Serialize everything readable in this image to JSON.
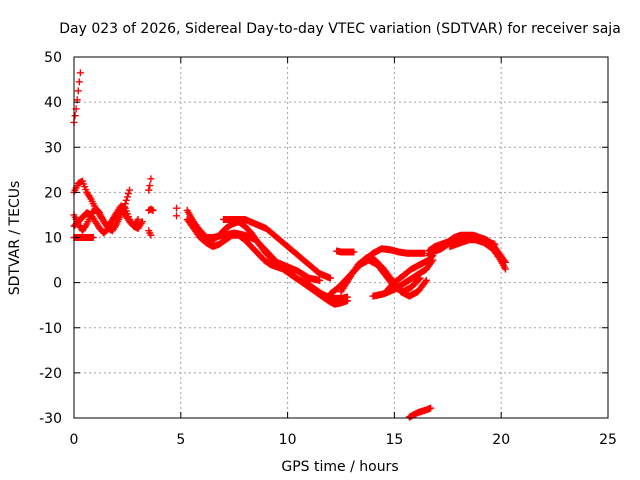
{
  "chart_data": {
    "type": "scatter",
    "title": "Day 023 of 2026, Sidereal Day-to-day VTEC variation (SDTVAR) for receiver saja",
    "xlabel": "GPS time / hours",
    "ylabel": "SDTVAR / TECUs",
    "xlim": [
      0,
      25
    ],
    "ylim": [
      -30,
      50
    ],
    "xticks": [
      0,
      5,
      10,
      15,
      20,
      25
    ],
    "yticks": [
      -30,
      -20,
      -10,
      0,
      10,
      20,
      30,
      40,
      50
    ],
    "xtick_labels": [
      "0",
      "5",
      "10",
      "15",
      "20",
      "25"
    ],
    "ytick_labels": [
      "-30",
      "-20",
      "-10",
      "0",
      "10",
      "20",
      "30",
      "40",
      "50"
    ],
    "grid": true,
    "marker": "plus",
    "color": "#ff0000",
    "series": [
      {
        "name": "s1",
        "x": [
          0.0,
          0.05,
          0.1,
          0.15,
          0.2,
          0.25,
          0.3
        ],
        "y": [
          35.5,
          37,
          38.5,
          40.5,
          42.5,
          44.5,
          46.5
        ]
      },
      {
        "name": "s2",
        "x": [
          0.0,
          0.2,
          0.4,
          0.6,
          0.8,
          1.0,
          1.2,
          1.4,
          1.6,
          1.8,
          2.0,
          2.2,
          2.4,
          2.6
        ],
        "y": [
          20,
          22,
          22.5,
          20,
          18.5,
          16.5,
          15,
          13.5,
          12,
          11.5,
          13,
          15,
          17.5,
          20.5
        ]
      },
      {
        "name": "s3",
        "x": [
          0.0,
          0.2,
          0.4,
          0.6,
          0.8,
          1.0,
          1.2,
          1.4,
          1.6,
          1.8,
          2.0,
          2.2,
          2.4,
          2.6,
          2.8,
          3.0
        ],
        "y": [
          15,
          13,
          11.5,
          13,
          15,
          16.5,
          15.5,
          13.5,
          12.5,
          14,
          15.5,
          17,
          16.5,
          14,
          12.5,
          14
        ]
      },
      {
        "name": "s4",
        "x": [
          0.0,
          0.2,
          0.4,
          0.6,
          0.8,
          1.0,
          1.2,
          1.4,
          1.6,
          1.8,
          2.0,
          2.2,
          2.4,
          2.6,
          2.8,
          3.0,
          3.2
        ],
        "y": [
          12.5,
          13.5,
          14.5,
          15.5,
          15,
          13.5,
          12,
          11,
          12,
          13.5,
          15,
          16,
          15,
          13.5,
          12.5,
          12,
          13.5
        ]
      },
      {
        "name": "s5",
        "x": [
          0.0,
          0.3,
          0.6,
          0.9
        ],
        "y": [
          10,
          10,
          10,
          10
        ]
      },
      {
        "name": "s6",
        "x": [
          3.5,
          3.55,
          3.6
        ],
        "y": [
          20.5,
          21.5,
          23
        ]
      },
      {
        "name": "s7",
        "x": [
          3.5,
          3.6,
          3.7
        ],
        "y": [
          16,
          16.3,
          16
        ]
      },
      {
        "name": "s8",
        "x": [
          3.5,
          3.55,
          3.6
        ],
        "y": [
          11.5,
          11,
          10.5
        ]
      },
      {
        "name": "s9",
        "x": [
          4.8,
          4.8
        ],
        "y": [
          16.5,
          14.8
        ]
      },
      {
        "name": "s10",
        "x": [
          5.3,
          5.6,
          5.9,
          6.2,
          6.5,
          6.8,
          7.1,
          7.4,
          7.7,
          8.0,
          8.3,
          8.6,
          8.9,
          9.2,
          9.5,
          9.8,
          10.1,
          10.4,
          10.7,
          11.0,
          11.3,
          11.6,
          11.9,
          12.2,
          12.5,
          12.8
        ],
        "y": [
          16,
          13.5,
          11.5,
          10,
          9.5,
          10.5,
          12,
          13,
          13.5,
          12.5,
          11,
          9,
          7,
          5.5,
          4,
          3,
          2,
          1,
          0,
          -1,
          -2,
          -3,
          -4,
          -4.8,
          -4.5,
          -4
        ]
      },
      {
        "name": "s11",
        "x": [
          5.3,
          5.6,
          5.9,
          6.2,
          6.5,
          6.8,
          7.1,
          7.4,
          7.7,
          8.0,
          8.3,
          8.6,
          8.9,
          9.2,
          9.5,
          9.8,
          10.1,
          10.4,
          10.7,
          11.0,
          11.3,
          11.6,
          11.9,
          12.2,
          12.5,
          12.8
        ],
        "y": [
          14,
          12,
          10,
          8.8,
          8,
          8.5,
          9.5,
          10.5,
          10.5,
          9.5,
          8,
          6.5,
          5,
          4,
          3.5,
          3,
          2,
          1,
          0.3,
          -0.5,
          -1.5,
          -2.5,
          -3.2,
          -3.5,
          -3.5,
          -3.2
        ]
      },
      {
        "name": "s12",
        "x": [
          7.0,
          7.5,
          8.0,
          8.5,
          9.0,
          9.5,
          10.0,
          10.5,
          11.0,
          11.5,
          12.0
        ],
        "y": [
          14,
          14,
          14,
          13,
          12,
          10,
          8,
          6,
          4,
          2,
          1
        ]
      },
      {
        "name": "s13",
        "x": [
          6.0,
          6.5,
          7.0,
          7.5,
          8.0,
          8.5,
          9.0,
          9.5,
          10.0,
          10.5,
          11.0,
          11.5
        ],
        "y": [
          10,
          10,
          10.5,
          11,
          10.5,
          9.5,
          7,
          4.5,
          3.5,
          2.5,
          1,
          0.5
        ]
      },
      {
        "name": "s14",
        "x": [
          12.3,
          12.5,
          12.7,
          12.9,
          13.1
        ],
        "y": [
          7,
          6.8,
          6.8,
          6.8,
          6.8
        ]
      },
      {
        "name": "s15",
        "x": [
          12.0,
          12.4,
          12.8,
          13.2,
          13.6,
          14.0,
          14.4,
          14.8,
          15.2,
          15.6,
          16.0,
          16.4
        ],
        "y": [
          -2.5,
          -1,
          1,
          3,
          5,
          6.5,
          7.5,
          7.3,
          6.8,
          6.5,
          6.5,
          6.5
        ]
      },
      {
        "name": "s16",
        "x": [
          12.5,
          12.9,
          13.3,
          13.7,
          14.1,
          14.5,
          14.9,
          15.3,
          15.7,
          16.1,
          16.5
        ],
        "y": [
          -2,
          1,
          4,
          5.5,
          5,
          3,
          0.5,
          -2,
          -3,
          -2,
          0.5
        ]
      },
      {
        "name": "s17",
        "x": [
          13.0,
          13.4,
          13.8,
          14.2,
          14.6,
          15.0,
          15.4,
          15.8,
          16.2
        ],
        "y": [
          2,
          4,
          5,
          4,
          1.5,
          -1,
          -2,
          -1,
          1
        ]
      },
      {
        "name": "s18",
        "x": [
          14.0,
          14.5,
          15.0,
          15.5,
          16.0,
          16.5,
          16.8
        ],
        "y": [
          -3,
          -2.5,
          -1.5,
          0,
          1.5,
          3,
          5
        ]
      },
      {
        "name": "s19",
        "x": [
          14.6,
          15.0,
          15.4,
          15.8,
          16.2,
          16.6,
          16.8
        ],
        "y": [
          -2,
          0,
          1.5,
          3,
          4,
          5,
          6
        ]
      },
      {
        "name": "s20",
        "x": [
          15.7,
          15.9,
          16.1,
          16.3,
          16.5,
          16.7
        ],
        "y": [
          -29.8,
          -29.3,
          -28.8,
          -28.5,
          -28.2,
          -27.8
        ]
      },
      {
        "name": "s21",
        "x": [
          16.6,
          16.9,
          17.2,
          17.5,
          17.8,
          18.1,
          18.4,
          18.7,
          19.0,
          19.3,
          19.6,
          19.9,
          20.2
        ],
        "y": [
          6,
          7,
          7.5,
          8.5,
          9.5,
          10,
          10,
          10,
          9.5,
          8.5,
          7.5,
          5.5,
          3
        ]
      },
      {
        "name": "s22",
        "x": [
          16.6,
          16.9,
          17.2,
          17.5,
          17.8,
          18.1,
          18.4,
          18.7,
          19.0,
          19.3,
          19.6,
          19.9,
          20.2
        ],
        "y": [
          7,
          8,
          8.5,
          9,
          10,
          10.5,
          10.5,
          10.5,
          10,
          9.5,
          8.5,
          6.5,
          4.5
        ]
      },
      {
        "name": "s23",
        "x": [
          17.6,
          17.9,
          18.2,
          18.5,
          18.8,
          19.1,
          19.4,
          19.7
        ],
        "y": [
          8,
          8.5,
          9,
          9.5,
          9.5,
          9,
          9,
          8.5
        ]
      }
    ]
  }
}
